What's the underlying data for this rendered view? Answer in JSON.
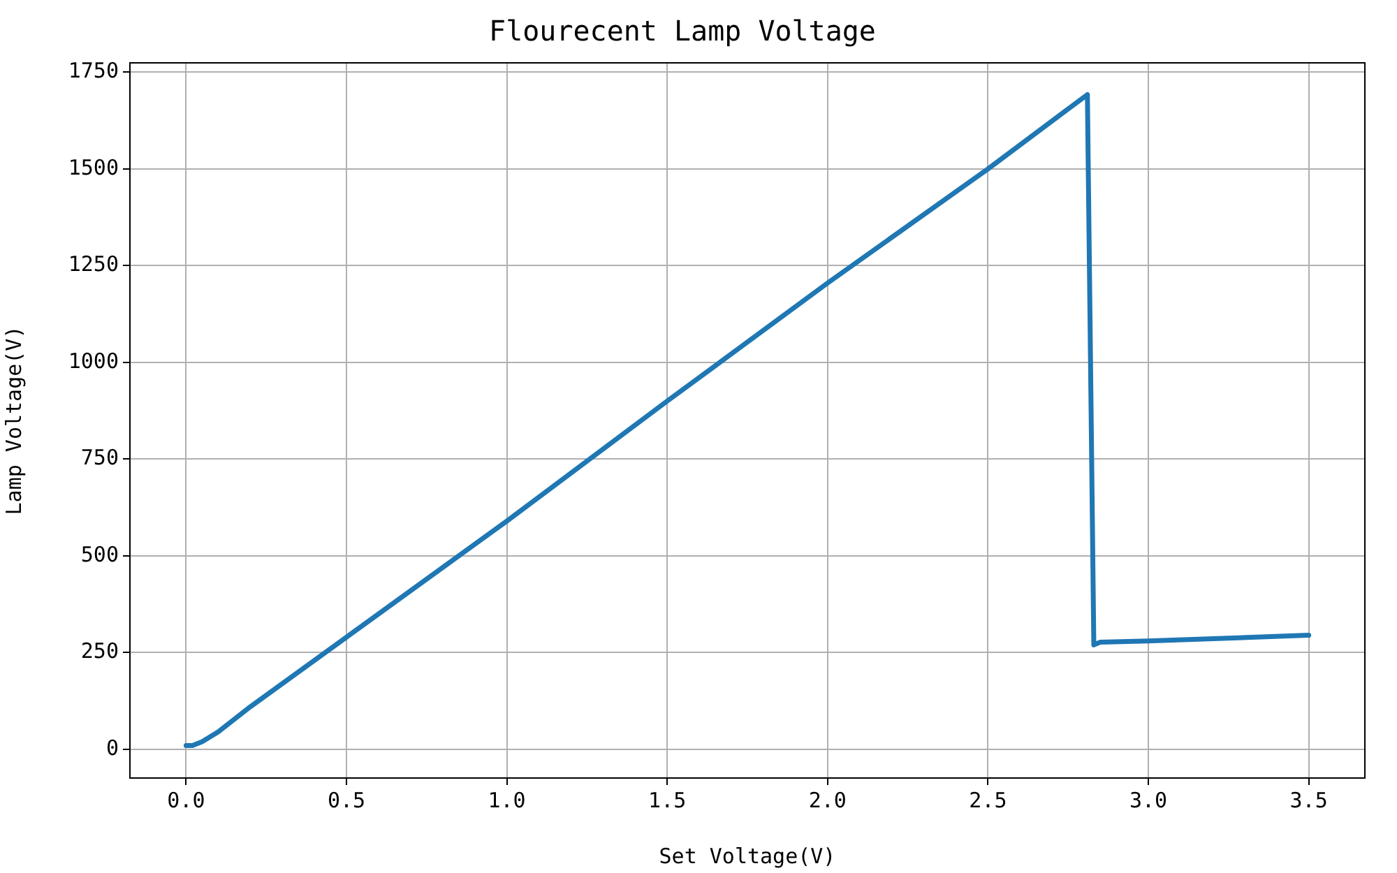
{
  "chart_data": {
    "type": "line",
    "title": "Flourecent Lamp Voltage",
    "xlabel": "Set Voltage(V)",
    "ylabel": "Lamp Voltage(V)",
    "series": [
      {
        "color": "#1f77b4",
        "x": [
          0,
          0.02,
          0.05,
          0.1,
          0.2,
          0.5,
          1.0,
          1.5,
          2.0,
          2.5,
          2.81,
          2.83,
          2.85,
          3.0,
          3.5
        ],
        "values": [
          10,
          10,
          20,
          45,
          110,
          290,
          590,
          900,
          1205,
          1500,
          1692,
          270,
          277,
          280,
          295
        ]
      }
    ],
    "xlim": [
      -0.175,
      3.675
    ],
    "ylim": [
      -74,
      1774
    ],
    "xticks": [
      {
        "value": 0,
        "label": "0.0"
      },
      {
        "value": 0.5,
        "label": "0.5"
      },
      {
        "value": 1,
        "label": "1.0"
      },
      {
        "value": 1.5,
        "label": "1.5"
      },
      {
        "value": 2,
        "label": "2.0"
      },
      {
        "value": 2.5,
        "label": "2.5"
      },
      {
        "value": 3,
        "label": "3.0"
      },
      {
        "value": 3.5,
        "label": "3.5"
      }
    ],
    "yticks": [
      0,
      250,
      500,
      750,
      1000,
      1250,
      1500,
      1750
    ],
    "grid": true
  }
}
